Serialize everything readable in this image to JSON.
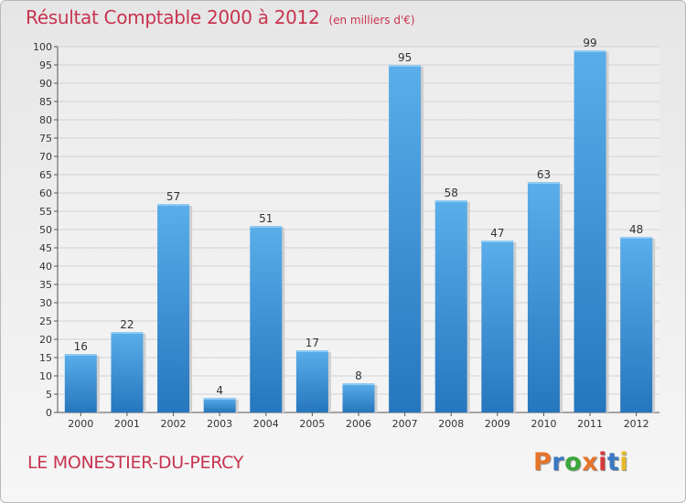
{
  "header": {
    "title": "Résultat Comptable 2000 à 2012",
    "unit": "(en milliers d'€)"
  },
  "footer": {
    "commune": "LE MONESTIER-DU-PERCY",
    "logo": "Proxiti",
    "logo_colors": [
      "#e6732a",
      "#3a78c2",
      "#3aa83a",
      "#e6732a",
      "#d63a3a",
      "#3a78c2",
      "#e6b82a"
    ]
  },
  "chart_data": {
    "type": "bar",
    "title": "Résultat Comptable 2000 à 2012",
    "subtitle": "(en milliers d'€)",
    "categories": [
      "2000",
      "2001",
      "2002",
      "2003",
      "2004",
      "2005",
      "2006",
      "2007",
      "2008",
      "2009",
      "2010",
      "2011",
      "2012"
    ],
    "values": [
      16,
      22,
      57,
      4,
      51,
      17,
      8,
      95,
      58,
      47,
      63,
      99,
      48
    ],
    "ylim": [
      0,
      100
    ],
    "ytick_step": 5,
    "grid": true,
    "bar_color": "#3a8fd6",
    "bar_color_light": "#5aaeea",
    "bar_color_dark": "#2676bd"
  }
}
